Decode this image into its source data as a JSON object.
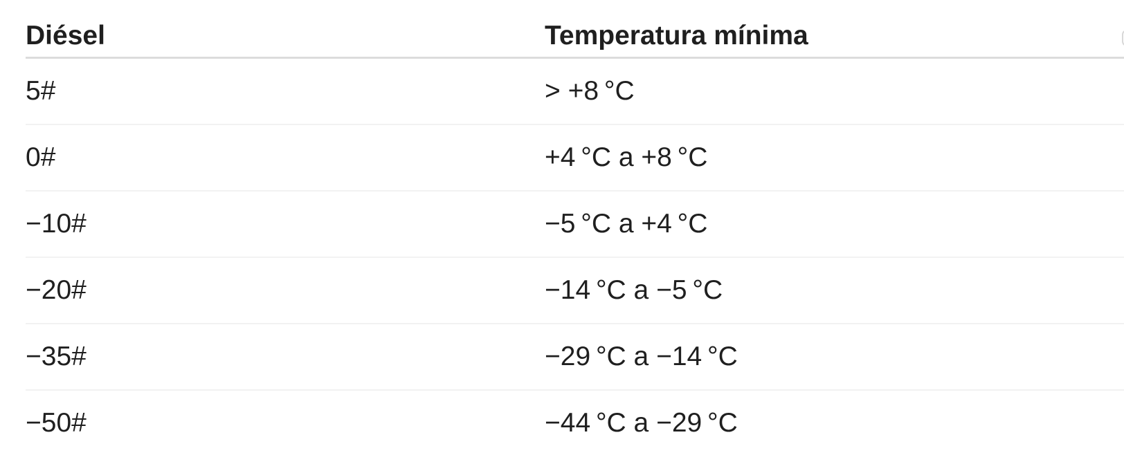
{
  "page": {
    "background": "#ffffff",
    "text_color": "#1f1f1f",
    "header_divider_color": "#dcdcdc",
    "row_divider_color": "#f2f2f2"
  },
  "table": {
    "headers": [
      "Diésel",
      "Temperatura mínima"
    ],
    "rows": [
      {
        "diesel": "5#",
        "temp": "> +8 °C"
      },
      {
        "diesel": "0#",
        "temp": "+4 °C a +8 °C"
      },
      {
        "diesel": "−10#",
        "temp": "−5 °C a +4 °C"
      },
      {
        "diesel": "−20#",
        "temp": "−14 °C a −5 °C"
      },
      {
        "diesel": "−35#",
        "temp": "−29 °C a −14 °C"
      },
      {
        "diesel": "−50#",
        "temp": "−44 °C a −29 °C"
      }
    ]
  }
}
